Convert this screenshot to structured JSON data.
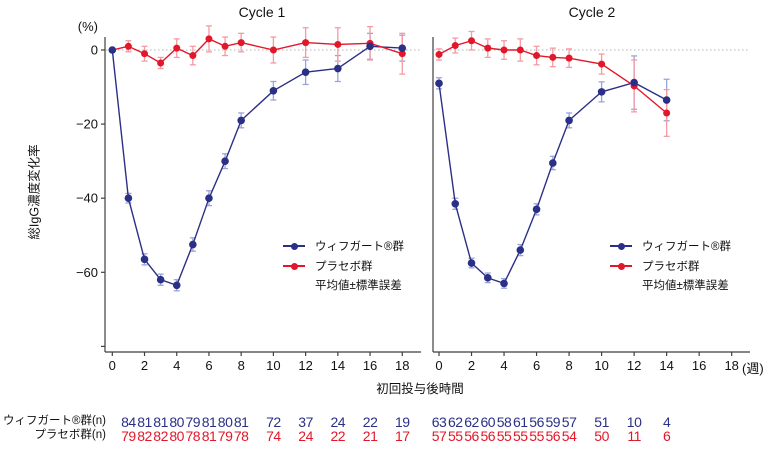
{
  "figure": {
    "y_unit_label": "(%)",
    "y_axis_title": "総IgG濃度変化率",
    "x_axis_title": "初回投与後時間",
    "x_unit_label": "(週)"
  },
  "legend": {
    "drug_label": "ウィフガート®群",
    "placebo_label": "プラセボ群",
    "note": "平均値±標準誤差"
  },
  "n_table": {
    "drug_row_label": "ウィフガート®群(n)",
    "placebo_row_label": "プラセボ群(n)"
  },
  "colors": {
    "drug": "#2b3087",
    "placebo": "#e3172a",
    "drug_error": "#9aa4d8",
    "placebo_error": "#f59aa4",
    "axis": "#3f3f3f",
    "zero_line": "#b3b3b3",
    "tick_text": "#111111"
  },
  "chart_data": [
    {
      "type": "line",
      "title": "Cycle 1",
      "xlabel": "初回投与後時間 (週)",
      "ylabel": "総IgG濃度変化率 (%)",
      "ylim": [
        -80,
        6
      ],
      "xticks": [
        0,
        2,
        4,
        6,
        8,
        10,
        12,
        14,
        16,
        18
      ],
      "yticks": [
        0,
        -20,
        -40,
        -60
      ],
      "legend_note": "平均値±標準誤差",
      "x": [
        0,
        1,
        2,
        3,
        4,
        5,
        6,
        7,
        8,
        10,
        12,
        14,
        16,
        18
      ],
      "series": [
        {
          "name": "ウィフガート®群",
          "values": [
            0,
            -40,
            -56.5,
            -62,
            -63.5,
            -52.5,
            -40,
            -30,
            -19,
            -11,
            -6,
            -5,
            1,
            0.5
          ],
          "se": [
            0,
            1.3,
            1.5,
            1.5,
            1.5,
            1.8,
            2,
            2,
            2,
            2.5,
            3.3,
            3.5,
            3.5,
            3.5
          ]
        },
        {
          "name": "プラセボ群",
          "values": [
            0,
            1,
            -1,
            -3.5,
            0.5,
            -1.5,
            3,
            1,
            2,
            0,
            2,
            1.5,
            1.8,
            -1
          ],
          "se": [
            0.5,
            1.5,
            2,
            1.5,
            2.5,
            2.5,
            3.5,
            2.5,
            2.5,
            3.5,
            4,
            4.5,
            4.5,
            5.5
          ]
        }
      ],
      "n_weeks": [
        1,
        2,
        3,
        4,
        5,
        6,
        7,
        8,
        10,
        12,
        14,
        16,
        18
      ],
      "n_drug": [
        84,
        81,
        81,
        80,
        79,
        81,
        80,
        81,
        72,
        37,
        24,
        22,
        19
      ],
      "n_placebo": [
        79,
        82,
        82,
        80,
        78,
        81,
        79,
        78,
        74,
        24,
        22,
        21,
        17
      ]
    },
    {
      "type": "line",
      "title": "Cycle 2",
      "xlabel": "初回投与後時間 (週)",
      "ylabel": "総IgG濃度変化率 (%)",
      "ylim": [
        -80,
        6
      ],
      "xticks": [
        0,
        2,
        4,
        6,
        8,
        10,
        12,
        14,
        16,
        18
      ],
      "yticks": [
        0,
        -20,
        -40,
        -60
      ],
      "legend_note": "平均値±標準誤差",
      "x": [
        0,
        1,
        2,
        3,
        4,
        5,
        6,
        7,
        8,
        10,
        12,
        14
      ],
      "series": [
        {
          "name": "ウィフガート®群",
          "values": [
            -9,
            -41.5,
            -57.5,
            -61.5,
            -63,
            -54,
            -43,
            -30.5,
            -19,
            -11.3,
            -8.8,
            -13.5
          ],
          "se": [
            1.5,
            1.5,
            1.3,
            1.3,
            1.3,
            1.5,
            1.5,
            1.8,
            2,
            2.7,
            7.2,
            5.6
          ]
        },
        {
          "name": "プラセボ群",
          "values": [
            -1.2,
            1.2,
            2.5,
            0.5,
            0,
            0,
            -1.5,
            -2,
            -2.2,
            -3.8,
            -9.7,
            -17
          ],
          "se": [
            1.5,
            2,
            2.5,
            2.5,
            2.5,
            3,
            2.5,
            2.5,
            2.5,
            2.7,
            7,
            6.3
          ]
        }
      ],
      "n_weeks": [
        0,
        1,
        2,
        3,
        4,
        5,
        6,
        7,
        8,
        10,
        12,
        14
      ],
      "n_drug": [
        63,
        62,
        62,
        60,
        58,
        61,
        56,
        59,
        57,
        51,
        10,
        4
      ],
      "n_placebo": [
        57,
        55,
        56,
        56,
        55,
        55,
        55,
        56,
        54,
        50,
        11,
        6
      ]
    }
  ]
}
